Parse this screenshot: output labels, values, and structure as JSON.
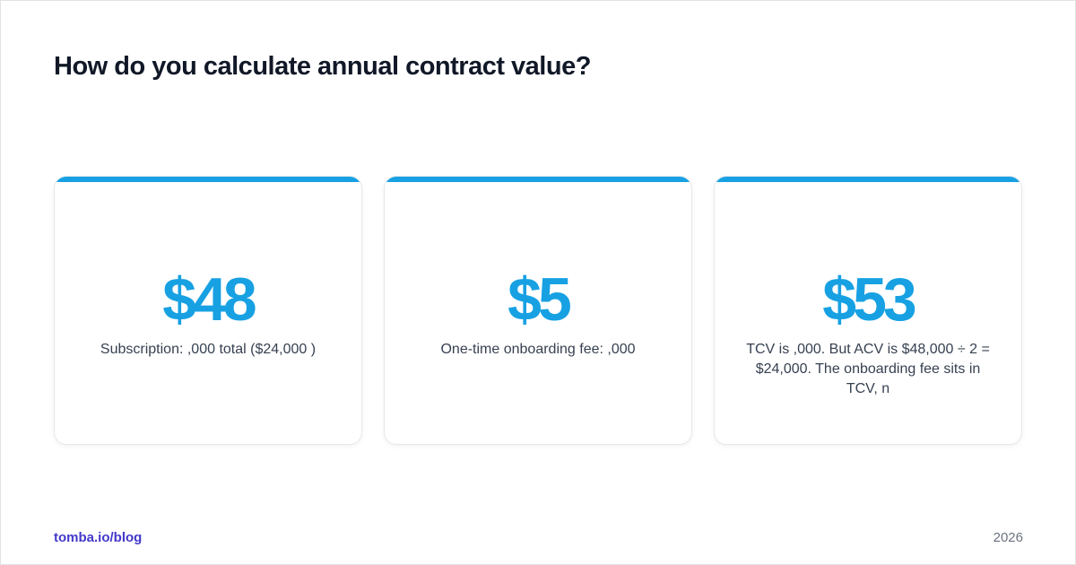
{
  "header": {
    "title": "How do you calculate annual contract value?"
  },
  "cards": [
    {
      "value": "$48",
      "text": "Subscription: ,000 total ($24,000 )"
    },
    {
      "value": "$5",
      "text": "One-time onboarding fee: ,000"
    },
    {
      "value": "$53",
      "text": "TCV is ,000. But ACV is $48,000 ÷ 2 = $24,000. The onboarding fee sits in TCV, n"
    }
  ],
  "footer": {
    "brand": "tomba.io/blog",
    "year": "2026"
  }
}
